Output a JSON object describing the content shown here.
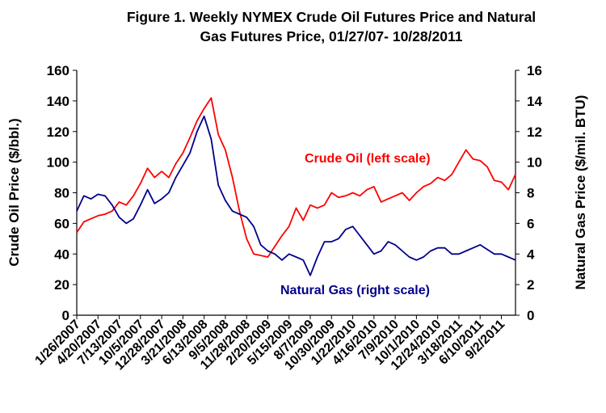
{
  "chart_data": {
    "type": "line",
    "title_lines": [
      "Figure 1. Weekly NYMEX Crude Oil Futures Price and Natural",
      "Gas Futures Price, 01/27/07- 10/28/2011"
    ],
    "ylabel_left": "Crude Oil Price ($/bbl.)",
    "ylabel_right": "Natural Gas Price ($/mil. BTU)",
    "ylim_left": [
      0,
      160
    ],
    "ylim_right": [
      0,
      16
    ],
    "yticks_left": [
      "0",
      "20",
      "40",
      "60",
      "80",
      "100",
      "120",
      "140",
      "160"
    ],
    "yticks_right": [
      "0",
      "2",
      "4",
      "6",
      "8",
      "10",
      "12",
      "14",
      "16"
    ],
    "x_tick_labels": [
      "1/26/2007",
      "4/20/2007",
      "7/13/2007",
      "10/5/2007",
      "12/28/2007",
      "3/21/2008",
      "6/13/2008",
      "9/5/2008",
      "11/28/2008",
      "2/20/2009",
      "5/15/2009",
      "8/7/2009",
      "10/30/2009",
      "1/22/2010",
      "4/16/2010",
      "7/9/2010",
      "10/1/2010",
      "12/24/2010",
      "3/18/2011",
      "6/10/2011",
      "9/2/2011"
    ],
    "grid": false,
    "series": [
      {
        "name": "Crude Oil (left scale)",
        "axis": "left",
        "color": "#ff0000",
        "x": [
          "1/26/2007",
          "2/23/2007",
          "3/23/2007",
          "4/20/2007",
          "5/18/2007",
          "6/15/2007",
          "7/13/2007",
          "8/10/2007",
          "9/7/2007",
          "10/5/2007",
          "11/2/2007",
          "11/30/2007",
          "12/28/2007",
          "1/25/2008",
          "2/22/2008",
          "3/21/2008",
          "4/18/2008",
          "5/16/2008",
          "6/13/2008",
          "7/11/2008",
          "8/8/2008",
          "9/5/2008",
          "10/3/2008",
          "10/31/2008",
          "11/28/2008",
          "12/26/2008",
          "1/23/2009",
          "2/20/2009",
          "3/20/2009",
          "4/17/2009",
          "5/15/2009",
          "6/12/2009",
          "7/10/2009",
          "8/7/2009",
          "9/4/2009",
          "10/2/2009",
          "10/30/2009",
          "11/27/2009",
          "12/25/2009",
          "1/22/2010",
          "2/19/2010",
          "3/19/2010",
          "4/16/2010",
          "5/14/2010",
          "6/11/2010",
          "7/9/2010",
          "8/6/2010",
          "9/3/2010",
          "10/1/2010",
          "10/29/2010",
          "11/26/2010",
          "12/24/2010",
          "1/21/2011",
          "2/18/2011",
          "3/18/2011",
          "4/15/2011",
          "5/13/2011",
          "6/10/2011",
          "7/8/2011",
          "8/5/2011",
          "9/2/2011",
          "9/30/2011",
          "10/28/2011"
        ],
        "y": [
          54,
          61,
          63,
          65,
          66,
          68,
          74,
          72,
          78,
          86,
          96,
          90,
          94,
          90,
          99,
          106,
          116,
          127,
          135,
          142,
          118,
          108,
          90,
          68,
          50,
          40,
          39,
          38,
          45,
          52,
          58,
          70,
          62,
          72,
          70,
          72,
          80,
          77,
          78,
          80,
          78,
          82,
          84,
          74,
          76,
          78,
          80,
          75,
          80,
          84,
          86,
          90,
          88,
          92,
          100,
          108,
          102,
          101,
          97,
          88,
          87,
          82,
          92
        ]
      },
      {
        "name": "Natural Gas (right scale)",
        "axis": "right",
        "color": "#00008b",
        "x": [
          "1/26/2007",
          "2/23/2007",
          "3/23/2007",
          "4/20/2007",
          "5/18/2007",
          "6/15/2007",
          "7/13/2007",
          "8/10/2007",
          "9/7/2007",
          "10/5/2007",
          "11/2/2007",
          "11/30/2007",
          "12/28/2007",
          "1/25/2008",
          "2/22/2008",
          "3/21/2008",
          "4/18/2008",
          "5/16/2008",
          "6/13/2008",
          "7/11/2008",
          "8/8/2008",
          "9/5/2008",
          "10/3/2008",
          "10/31/2008",
          "11/28/2008",
          "12/26/2008",
          "1/23/2009",
          "2/20/2009",
          "3/20/2009",
          "4/17/2009",
          "5/15/2009",
          "6/12/2009",
          "7/10/2009",
          "8/7/2009",
          "9/4/2009",
          "10/2/2009",
          "10/30/2009",
          "11/27/2009",
          "12/25/2009",
          "1/22/2010",
          "2/19/2010",
          "3/19/2010",
          "4/16/2010",
          "5/14/2010",
          "6/11/2010",
          "7/9/2010",
          "8/6/2010",
          "9/3/2010",
          "10/1/2010",
          "10/29/2010",
          "11/26/2010",
          "12/24/2010",
          "1/21/2011",
          "2/18/2011",
          "3/18/2011",
          "4/15/2011",
          "5/13/2011",
          "6/10/2011",
          "7/8/2011",
          "8/5/2011",
          "9/2/2011",
          "9/30/2011",
          "10/28/2011"
        ],
        "y": [
          6.8,
          7.8,
          7.6,
          7.9,
          7.8,
          7.2,
          6.4,
          6.0,
          6.3,
          7.2,
          8.2,
          7.3,
          7.6,
          8.0,
          9.0,
          9.8,
          10.6,
          12.0,
          13.0,
          11.5,
          8.5,
          7.5,
          6.8,
          6.6,
          6.4,
          5.8,
          4.6,
          4.2,
          4.0,
          3.6,
          4.0,
          3.8,
          3.6,
          2.6,
          3.8,
          4.8,
          4.8,
          5.0,
          5.6,
          5.8,
          5.2,
          4.6,
          4.0,
          4.2,
          4.8,
          4.6,
          4.2,
          3.8,
          3.6,
          3.8,
          4.2,
          4.4,
          4.4,
          4.0,
          4.0,
          4.2,
          4.4,
          4.6,
          4.3,
          4.0,
          4.0,
          3.8,
          3.6
        ]
      }
    ],
    "annotations": [
      {
        "text": "Crude Oil (left scale)",
        "color": "#ff0000"
      },
      {
        "text": "Natural Gas (right scale)",
        "color": "#00008b"
      }
    ]
  }
}
